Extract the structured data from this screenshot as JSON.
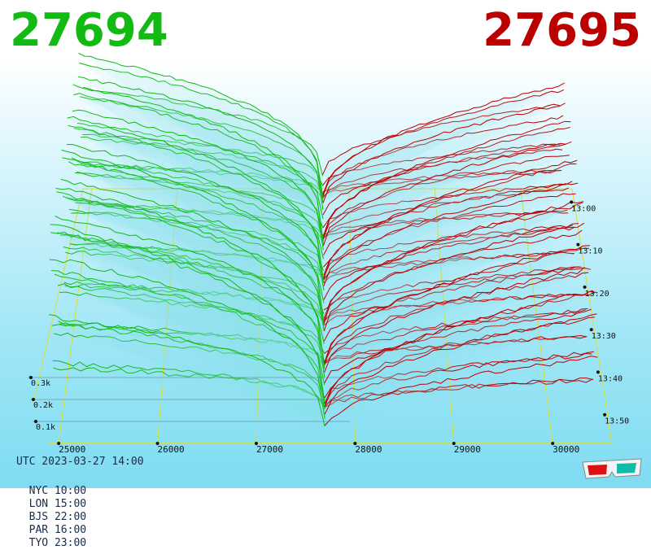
{
  "header": {
    "bid_price": "27694",
    "ask_price": "27695",
    "bid_color": "#11bb11",
    "ask_color": "#bb0000"
  },
  "footer": {
    "utc": "UTC 2023-03-27 14:00",
    "zones": [
      "NYC 10:00",
      "LON 15:00",
      "BJS 22:00",
      "PAR 16:00",
      "TYO 23:00"
    ]
  },
  "icons": {
    "glasses": "3d-glasses-icon"
  },
  "chart_data": {
    "type": "area",
    "title": "",
    "x_axis": {
      "ticks": [
        25000,
        26000,
        27000,
        28000,
        29000,
        30000
      ],
      "range": [
        24900,
        30600
      ]
    },
    "depth_axis": {
      "ticks": [
        "13:00",
        "13:10",
        "13:20",
        "13:30",
        "13:40",
        "13:50"
      ]
    },
    "volume_axis": {
      "ticks": [
        "0.1k",
        "0.2k",
        "0.3k"
      ]
    },
    "mid_price": 27694,
    "series": [
      {
        "name": "27694",
        "color": "#11bb11"
      },
      {
        "name": "27695",
        "color": "#bb0000"
      }
    ]
  }
}
